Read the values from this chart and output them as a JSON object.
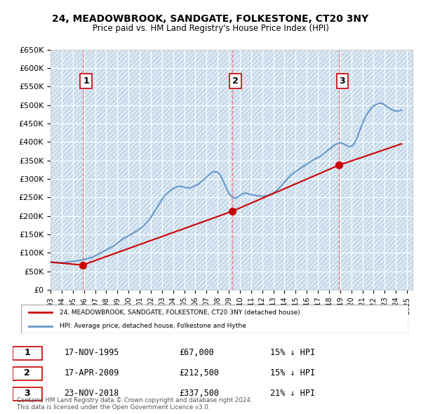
{
  "title": "24, MEADOWBROOK, SANDGATE, FOLKESTONE, CT20 3NY",
  "subtitle": "Price paid vs. HM Land Registry's House Price Index (HPI)",
  "ylabel": "",
  "xlabel": "",
  "ylim": [
    0,
    650000
  ],
  "yticks": [
    0,
    50000,
    100000,
    150000,
    200000,
    250000,
    300000,
    350000,
    400000,
    450000,
    500000,
    550000,
    600000,
    650000
  ],
  "ytick_labels": [
    "£0",
    "£50K",
    "£100K",
    "£150K",
    "£200K",
    "£250K",
    "£300K",
    "£350K",
    "£400K",
    "£450K",
    "£500K",
    "£550K",
    "£600K",
    "£650K"
  ],
  "xlim_start": 1993.0,
  "xlim_end": 2025.5,
  "background_color": "#ffffff",
  "plot_bg_color": "#dce9f5",
  "hatch_color": "#b8cfe0",
  "grid_color": "#ffffff",
  "red_line_color": "#cc0000",
  "blue_line_color": "#6699cc",
  "transaction_dates": [
    1995.88,
    2009.3,
    2018.9
  ],
  "transaction_prices": [
    67000,
    212500,
    337500
  ],
  "transaction_labels": [
    "1",
    "2",
    "3"
  ],
  "legend_red_label": "24, MEADOWBROOK, SANDGATE, FOLKESTONE, CT20 3NY (detached house)",
  "legend_blue_label": "HPI: Average price, detached house, Folkestone and Hythe",
  "table_rows": [
    {
      "num": "1",
      "date": "17-NOV-1995",
      "price": "£67,000",
      "info": "15% ↓ HPI"
    },
    {
      "num": "2",
      "date": "17-APR-2009",
      "price": "£212,500",
      "info": "15% ↓ HPI"
    },
    {
      "num": "3",
      "date": "23-NOV-2018",
      "price": "£337,500",
      "info": "21% ↓ HPI"
    }
  ],
  "copyright_text": "Contains HM Land Registry data © Crown copyright and database right 2024.\nThis data is licensed under the Open Government Licence v3.0.",
  "hpi_x": [
    1993,
    1993.25,
    1993.5,
    1993.75,
    1994,
    1994.25,
    1994.5,
    1994.75,
    1995,
    1995.25,
    1995.5,
    1995.75,
    1996,
    1996.25,
    1996.5,
    1996.75,
    1997,
    1997.25,
    1997.5,
    1997.75,
    1998,
    1998.25,
    1998.5,
    1998.75,
    1999,
    1999.25,
    1999.5,
    1999.75,
    2000,
    2000.25,
    2000.5,
    2000.75,
    2001,
    2001.25,
    2001.5,
    2001.75,
    2002,
    2002.25,
    2002.5,
    2002.75,
    2003,
    2003.25,
    2003.5,
    2003.75,
    2004,
    2004.25,
    2004.5,
    2004.75,
    2005,
    2005.25,
    2005.5,
    2005.75,
    2006,
    2006.25,
    2006.5,
    2006.75,
    2007,
    2007.25,
    2007.5,
    2007.75,
    2008,
    2008.25,
    2008.5,
    2008.75,
    2009,
    2009.25,
    2009.5,
    2009.75,
    2010,
    2010.25,
    2010.5,
    2010.75,
    2011,
    2011.25,
    2011.5,
    2011.75,
    2012,
    2012.25,
    2012.5,
    2012.75,
    2013,
    2013.25,
    2013.5,
    2013.75,
    2014,
    2014.25,
    2014.5,
    2014.75,
    2015,
    2015.25,
    2015.5,
    2015.75,
    2016,
    2016.25,
    2016.5,
    2016.75,
    2017,
    2017.25,
    2017.5,
    2017.75,
    2018,
    2018.25,
    2018.5,
    2018.75,
    2019,
    2019.25,
    2019.5,
    2019.75,
    2020,
    2020.25,
    2020.5,
    2020.75,
    2021,
    2021.25,
    2021.5,
    2021.75,
    2022,
    2022.25,
    2022.5,
    2022.75,
    2023,
    2023.25,
    2023.5,
    2023.75,
    2024,
    2024.25,
    2024.5
  ],
  "hpi_y": [
    75000,
    74000,
    73500,
    73000,
    73500,
    74000,
    75000,
    76000,
    77000,
    78000,
    79000,
    80000,
    82000,
    84000,
    86000,
    88000,
    92000,
    96000,
    100000,
    104000,
    108000,
    112000,
    116000,
    120000,
    126000,
    132000,
    138000,
    142000,
    146000,
    150000,
    155000,
    160000,
    165000,
    170000,
    178000,
    186000,
    196000,
    208000,
    220000,
    232000,
    244000,
    255000,
    262000,
    268000,
    274000,
    278000,
    280000,
    280000,
    278000,
    276000,
    276000,
    278000,
    282000,
    286000,
    292000,
    298000,
    305000,
    312000,
    318000,
    320000,
    318000,
    310000,
    295000,
    278000,
    262000,
    252000,
    248000,
    250000,
    255000,
    260000,
    262000,
    260000,
    258000,
    256000,
    255000,
    254000,
    253000,
    254000,
    256000,
    258000,
    262000,
    268000,
    275000,
    283000,
    292000,
    300000,
    308000,
    315000,
    320000,
    325000,
    330000,
    335000,
    340000,
    345000,
    350000,
    354000,
    358000,
    362000,
    368000,
    374000,
    380000,
    386000,
    392000,
    396000,
    398000,
    396000,
    392000,
    388000,
    388000,
    395000,
    410000,
    430000,
    450000,
    468000,
    480000,
    490000,
    498000,
    502000,
    505000,
    505000,
    500000,
    495000,
    490000,
    486000,
    484000,
    484000,
    486000
  ],
  "price_paid_x": [
    1993,
    1995.88,
    2009.3,
    2018.9,
    2024.5
  ],
  "price_paid_y": [
    75000,
    67000,
    212500,
    337500,
    395000
  ]
}
